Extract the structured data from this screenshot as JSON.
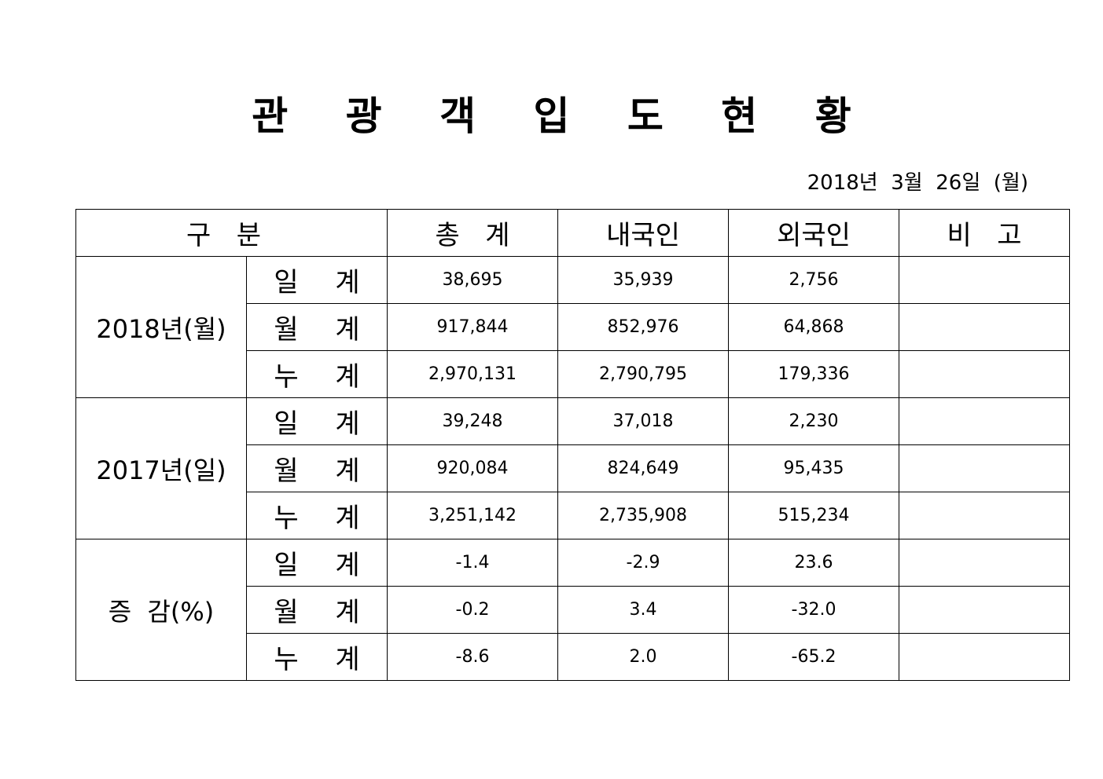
{
  "title": "관 광 객 입 도 현 황",
  "date": "2018년  3월  26일  (월)",
  "table": {
    "headers": [
      "구   분",
      "총   계",
      "내국인",
      "외국인",
      "비   고"
    ],
    "groups": [
      {
        "label": "2018년(월)",
        "rows": [
          {
            "label": "일 계",
            "total": "38,695",
            "domestic": "35,939",
            "foreign": "2,756",
            "note": ""
          },
          {
            "label": "월 계",
            "total": "917,844",
            "domestic": "852,976",
            "foreign": "64,868",
            "note": ""
          },
          {
            "label": "누 계",
            "total": "2,970,131",
            "domestic": "2,790,795",
            "foreign": "179,336",
            "note": ""
          }
        ]
      },
      {
        "label": "2017년(일)",
        "rows": [
          {
            "label": "일 계",
            "total": "39,248",
            "domestic": "37,018",
            "foreign": "2,230",
            "note": ""
          },
          {
            "label": "월 계",
            "total": "920,084",
            "domestic": "824,649",
            "foreign": "95,435",
            "note": ""
          },
          {
            "label": "누 계",
            "total": "3,251,142",
            "domestic": "2,735,908",
            "foreign": "515,234",
            "note": ""
          }
        ]
      },
      {
        "label": "증  감(%)",
        "rows": [
          {
            "label": "일 계",
            "total": "-1.4",
            "domestic": "-2.9",
            "foreign": "23.6",
            "note": ""
          },
          {
            "label": "월 계",
            "total": "-0.2",
            "domestic": "3.4",
            "foreign": "-32.0",
            "note": ""
          },
          {
            "label": "누 계",
            "total": "-8.6",
            "domestic": "2.0",
            "foreign": "-65.2",
            "note": ""
          }
        ]
      }
    ]
  }
}
